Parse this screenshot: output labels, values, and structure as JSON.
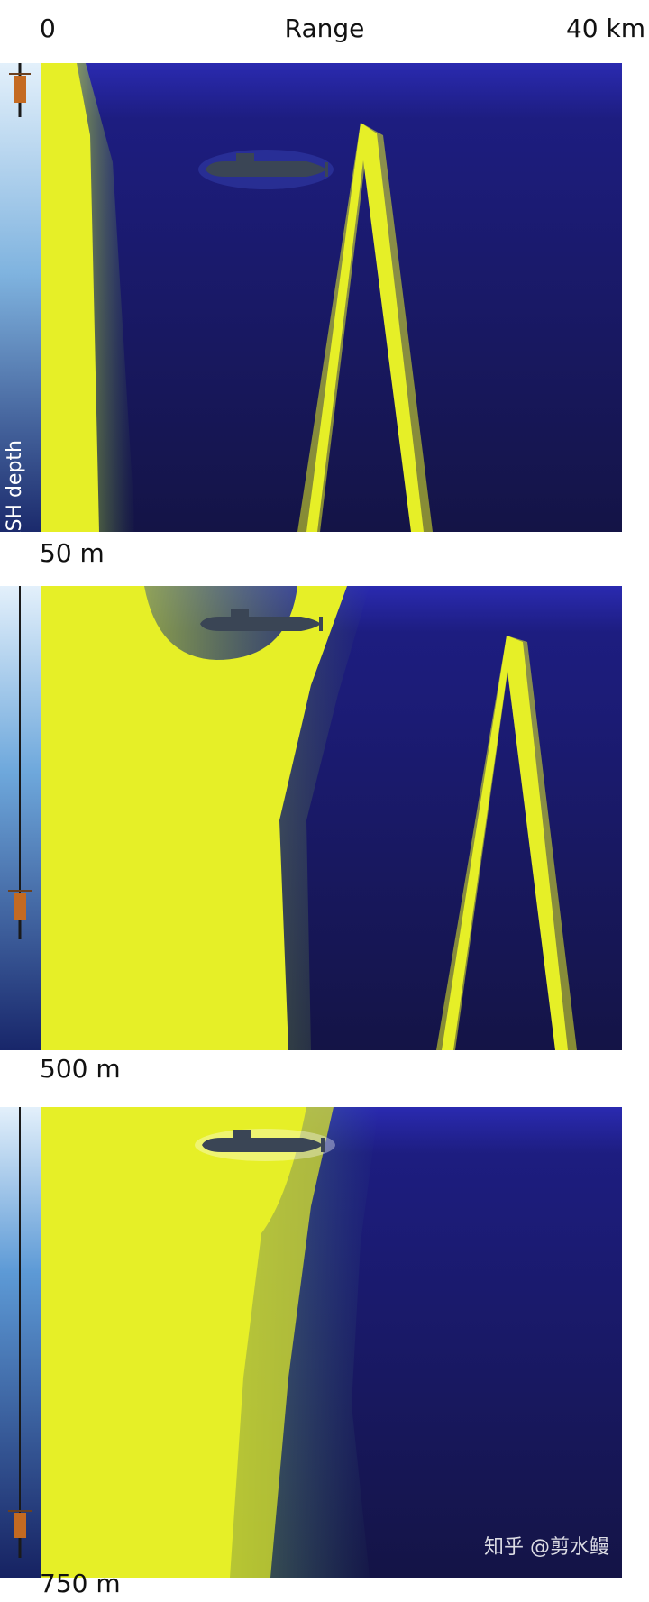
{
  "header": {
    "range_start": "0",
    "range_label": "Range",
    "range_end": "40 km"
  },
  "depth_axis_label": "FLASH depth",
  "panels": [
    {
      "depth_label": "50 m"
    },
    {
      "depth_label": "500 m"
    },
    {
      "depth_label": "750 m"
    }
  ],
  "watermark": "知乎 @剪水鳗",
  "colors": {
    "ocean_deep": "#17174f",
    "ocean_surface": "#2828a0",
    "sonar_coverage": "#e6ef27",
    "column_light": "#cfe4f6",
    "column_dark": "#1a2c70",
    "submarine": "#3a4555",
    "sonar_body": "#c46a22"
  }
}
